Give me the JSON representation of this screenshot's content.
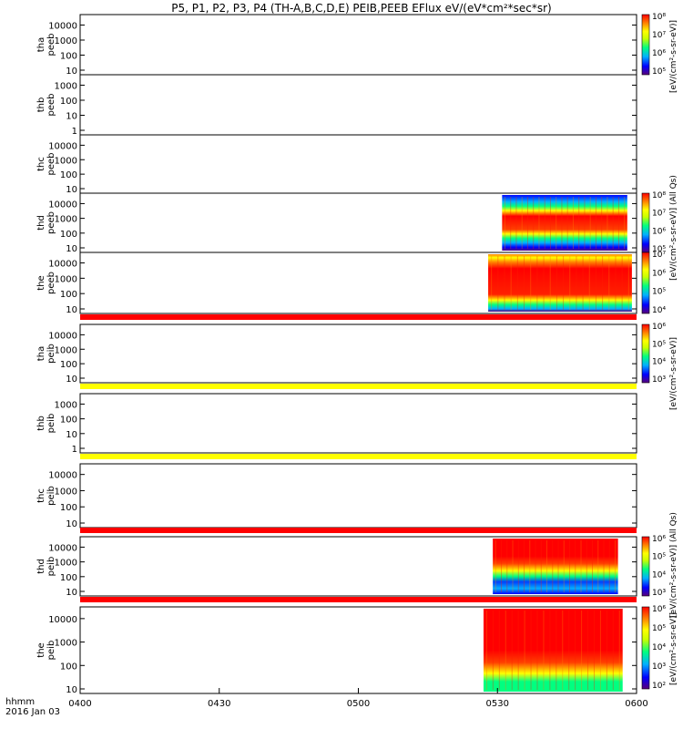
{
  "chart_data": {
    "type": "heatmap",
    "title": "P5, P1, P2, P3, P4 (TH-A,B,C,D,E) PEIB,PEEB EFlux eV/(eV*cm²*sec*sr)",
    "time_label": "hhmm",
    "date_label": "2016 Jan 03",
    "x_ticks": [
      "0400",
      "0430",
      "0500",
      "0530",
      "0600"
    ],
    "xlim": [
      "04:00",
      "06:00"
    ],
    "colorbar_label_electron": "[eV/(cm²-s-sr-eV)]",
    "colorbar_label_ion": "[eV/(cm²-s-sr-eV)] (All Qs)",
    "panels": [
      {
        "probe": "tha",
        "product": "peeb",
        "y_ticks": [
          "10",
          "100",
          "1000",
          "10000"
        ],
        "data_window": null,
        "colorbar_ticks": [
          "10⁵",
          "10⁶",
          "10⁷",
          "10⁸"
        ]
      },
      {
        "probe": "thb",
        "product": "peeb",
        "y_ticks": [
          "1",
          "10",
          "100",
          "1000"
        ],
        "data_window": null
      },
      {
        "probe": "thc",
        "product": "peeb",
        "y_ticks": [
          "10",
          "100",
          "1000",
          "10000"
        ],
        "data_window": null
      },
      {
        "probe": "thd",
        "product": "peeb",
        "y_ticks": [
          "10",
          "100",
          "1000",
          "10000"
        ],
        "data_window": [
          "05:31",
          "05:58"
        ],
        "colorbar_ticks": [
          "10⁵",
          "10⁶",
          "10⁷",
          "10⁸"
        ]
      },
      {
        "probe": "the",
        "product": "peeb",
        "y_ticks": [
          "10",
          "100",
          "1000",
          "10000"
        ],
        "data_window": [
          "05:28",
          "05:59"
        ],
        "colorbar_ticks": [
          "10⁴",
          "10⁵",
          "10⁶",
          "10⁷"
        ]
      },
      {
        "probe": "tha",
        "product": "peib",
        "y_ticks": [
          "10",
          "100",
          "1000",
          "10000"
        ],
        "data_window": null,
        "colorbar_ticks": [
          "10³",
          "10⁴",
          "10⁵",
          "10⁶"
        ]
      },
      {
        "probe": "thb",
        "product": "peib",
        "y_ticks": [
          "1",
          "10",
          "100",
          "1000"
        ],
        "data_window": null
      },
      {
        "probe": "thc",
        "product": "peib",
        "y_ticks": [
          "10",
          "100",
          "1000",
          "10000"
        ],
        "data_window": null
      },
      {
        "probe": "thd",
        "product": "peib",
        "y_ticks": [
          "10",
          "100",
          "1000",
          "10000"
        ],
        "data_window": [
          "05:29",
          "05:56"
        ],
        "colorbar_ticks": [
          "10³",
          "10⁴",
          "10⁵",
          "10⁶"
        ]
      },
      {
        "probe": "the",
        "product": "peib",
        "y_ticks": [
          "10",
          "100",
          "1000",
          "10000"
        ],
        "data_window": [
          "05:27",
          "05:57"
        ],
        "colorbar_ticks": [
          "10²",
          "10³",
          "10⁴",
          "10⁵",
          "10⁶"
        ]
      }
    ],
    "flag_bars": [
      {
        "after_panel": 4,
        "color": "#ff0000"
      },
      {
        "after_panel": 5,
        "color": "#ffff00"
      },
      {
        "after_panel": 6,
        "color": "#ffff00"
      },
      {
        "after_panel": 7,
        "color": "#ff0000"
      },
      {
        "after_panel": 8,
        "color": "#ff0000"
      }
    ],
    "colorscale": [
      "#5a007a",
      "#0000ff",
      "#00b0ff",
      "#00ff80",
      "#c8ff00",
      "#ffff00",
      "#ff8000",
      "#ff0000"
    ]
  }
}
